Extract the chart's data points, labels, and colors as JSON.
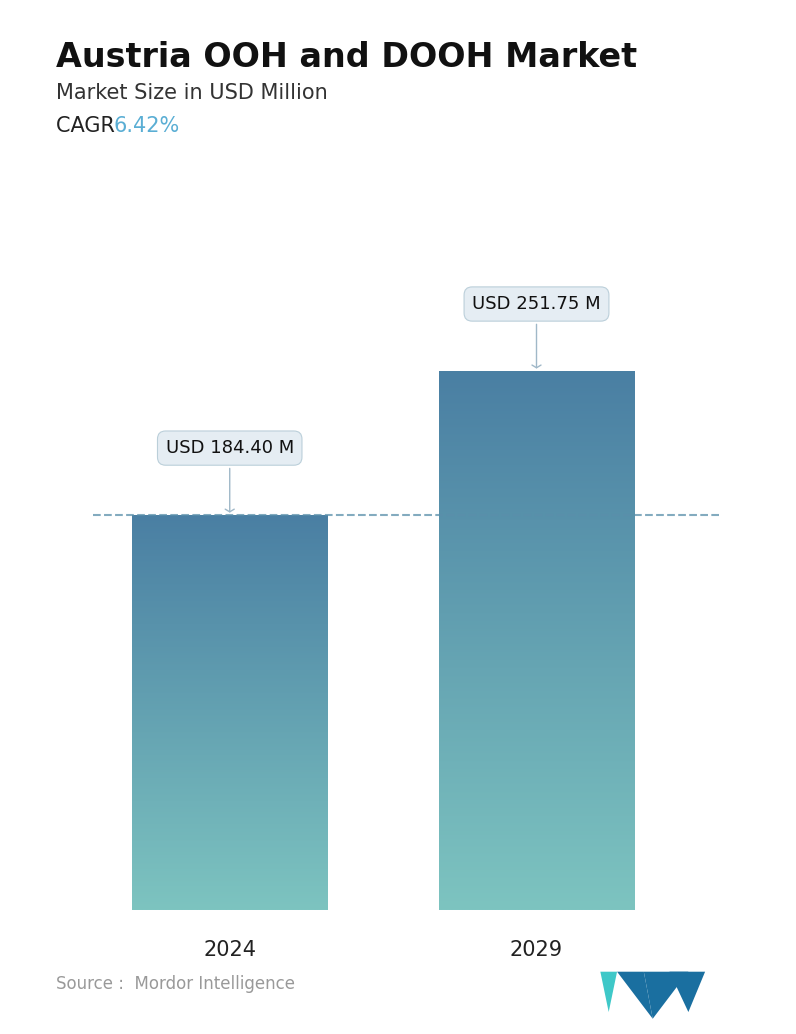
{
  "title": "Austria OOH and DOOH Market",
  "subtitle": "Market Size in USD Million",
  "cagr_label": "CAGR  ",
  "cagr_value": "6.42%",
  "cagr_color": "#5aaed4",
  "categories": [
    "2024",
    "2029"
  ],
  "values": [
    184.4,
    251.75
  ],
  "bar_labels": [
    "USD 184.40 M",
    "USD 251.75 M"
  ],
  "bar_color_top": "#4a7fa3",
  "bar_color_bottom": "#7dc4c0",
  "dashed_line_y": 184.4,
  "dashed_line_color": "#5a8faa",
  "ylim_max": 290,
  "source_text": "Source :  Mordor Intelligence",
  "source_color": "#999999",
  "bg_color": "#ffffff",
  "title_fontsize": 24,
  "subtitle_fontsize": 15,
  "cagr_fontsize": 15,
  "bar_label_fontsize": 13,
  "xtick_fontsize": 15,
  "source_fontsize": 12,
  "callout_bg": "#e4edf3",
  "callout_edge": "#b8cdd8",
  "arrow_color": "#a0b8c8"
}
